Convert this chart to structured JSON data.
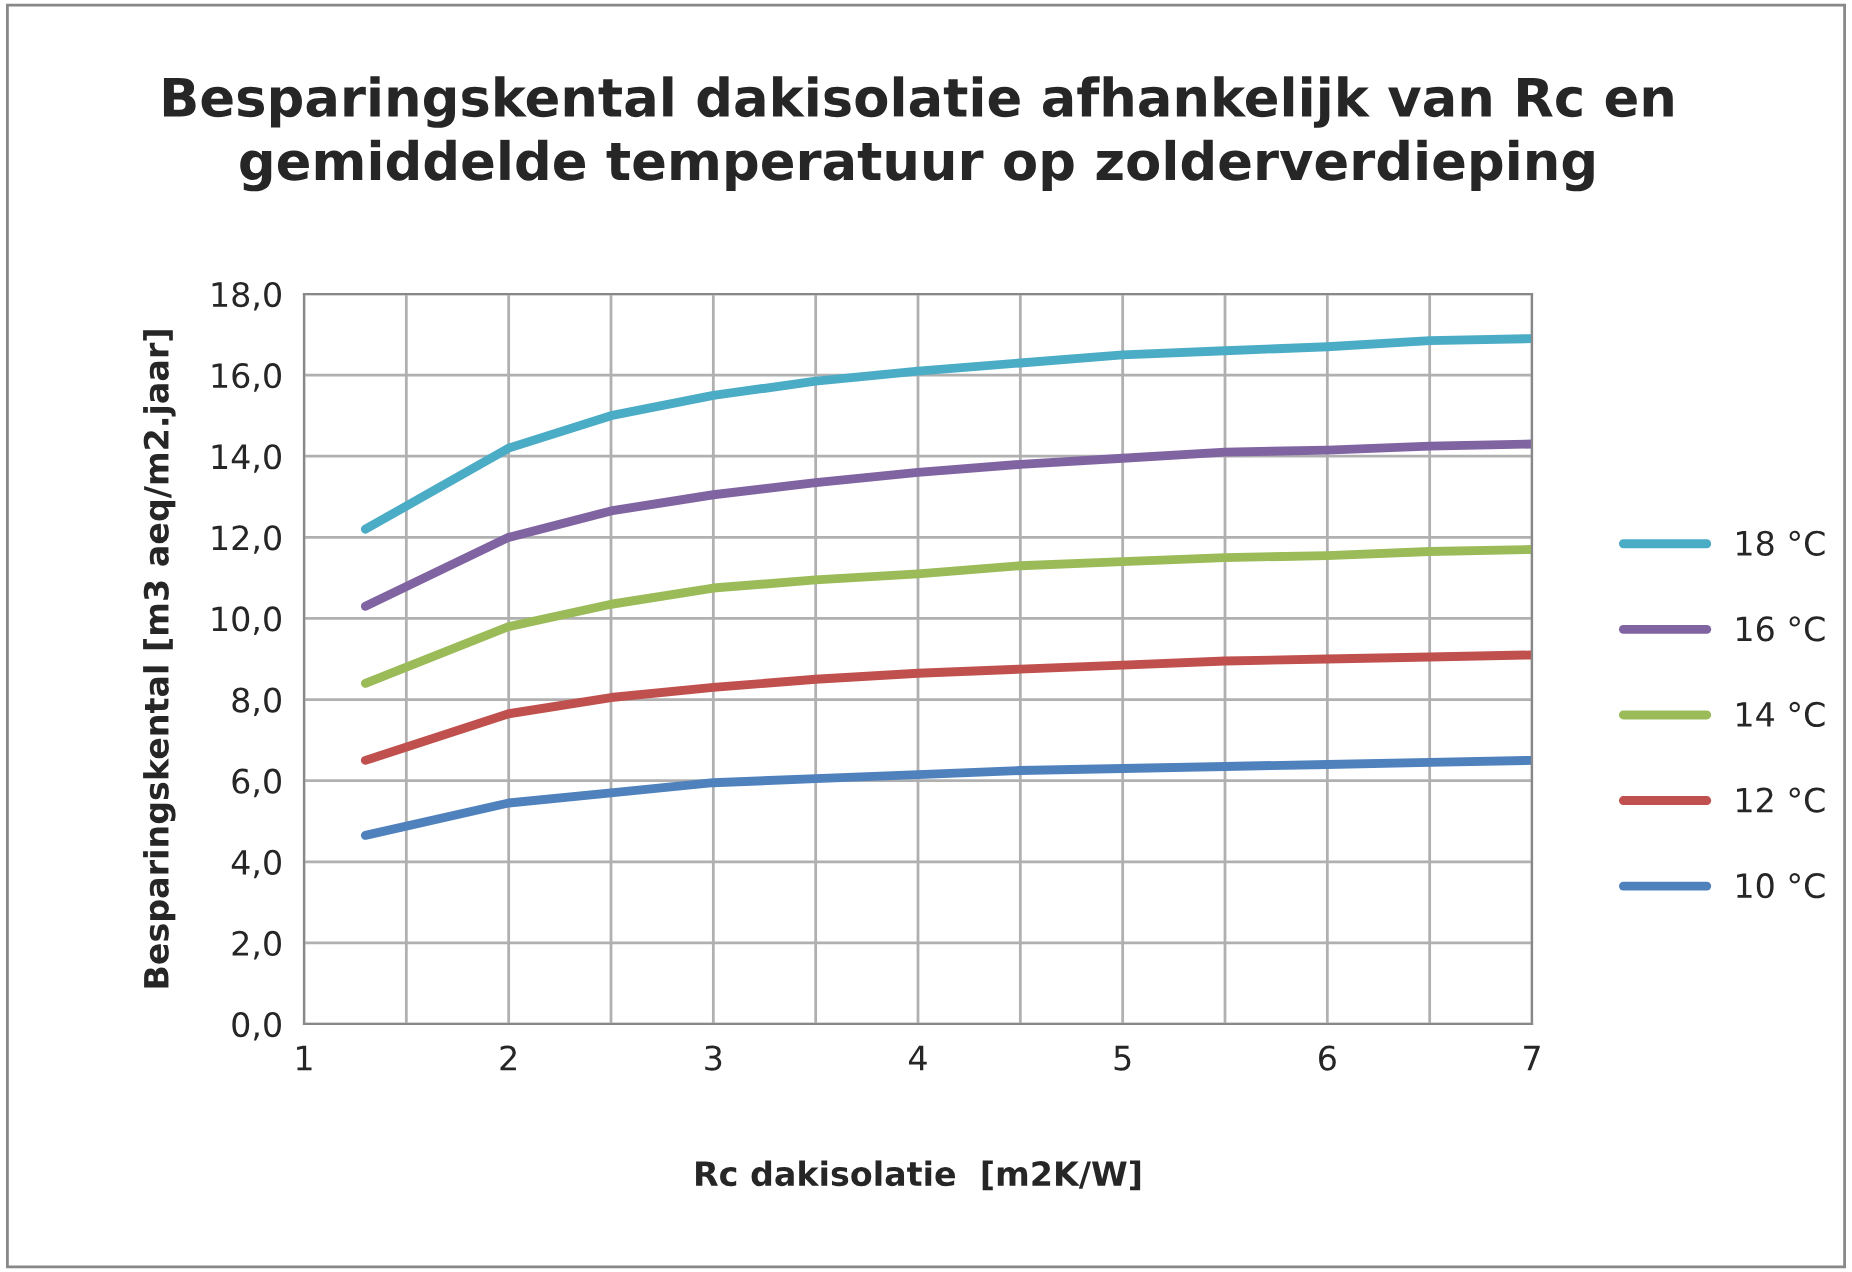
{
  "chart_data": {
    "type": "line",
    "title": "Besparingskental dakisolatie afhankelijk van Rc en\ngemiddelde temperatuur op zolderverdieping",
    "xlabel": "Rc dakisolatie  [m2K/W]",
    "ylabel": "Besparingskental [m3 aeq/m2.jaar]",
    "x": [
      1.3,
      2,
      2.5,
      3,
      3.5,
      4,
      4.5,
      5,
      5.5,
      6,
      6.5,
      7
    ],
    "series": [
      {
        "name": "18 °C",
        "color": "#4bacc6",
        "values": [
          12.2,
          14.2,
          15.0,
          15.5,
          15.85,
          16.1,
          16.3,
          16.5,
          16.6,
          16.7,
          16.85,
          16.9
        ]
      },
      {
        "name": "16 °C",
        "color": "#8064a2",
        "values": [
          10.3,
          12.0,
          12.65,
          13.05,
          13.35,
          13.6,
          13.8,
          13.95,
          14.1,
          14.15,
          14.25,
          14.3
        ]
      },
      {
        "name": "14 °C",
        "color": "#9bbb59",
        "values": [
          8.4,
          9.8,
          10.35,
          10.75,
          10.95,
          11.1,
          11.3,
          11.4,
          11.5,
          11.55,
          11.65,
          11.7
        ]
      },
      {
        "name": "12 °C",
        "color": "#c0504d",
        "values": [
          6.5,
          7.65,
          8.05,
          8.3,
          8.5,
          8.65,
          8.75,
          8.85,
          8.95,
          9.0,
          9.05,
          9.1
        ]
      },
      {
        "name": "10 °C",
        "color": "#4f81bd",
        "values": [
          4.65,
          5.45,
          5.7,
          5.95,
          6.05,
          6.15,
          6.25,
          6.3,
          6.35,
          6.4,
          6.45,
          6.5
        ]
      }
    ],
    "xlim": [
      1,
      7
    ],
    "xticks": [
      1,
      {
        "value": 1.5,
        "label": null
      },
      2,
      {
        "value": 2.5,
        "label": null
      },
      3,
      {
        "value": 3.5,
        "label": null
      },
      4,
      {
        "value": 4.5,
        "label": null
      },
      5,
      {
        "value": 5.5,
        "label": null
      },
      6,
      {
        "value": 6.5,
        "label": null
      },
      7
    ],
    "ylim": [
      0,
      18
    ],
    "yticks": [
      {
        "value": 0,
        "label": "0,0"
      },
      {
        "value": 2,
        "label": "2,0"
      },
      {
        "value": 4,
        "label": "4,0"
      },
      {
        "value": 6,
        "label": "6,0"
      },
      {
        "value": 8,
        "label": "8,0"
      },
      {
        "value": 10,
        "label": "10,0"
      },
      {
        "value": 12,
        "label": "12,0"
      },
      {
        "value": 14,
        "label": "14,0"
      },
      {
        "value": 16,
        "label": "16,0"
      },
      {
        "value": 18,
        "label": "18,0"
      }
    ],
    "grid": true,
    "legend": "right",
    "marker": "none",
    "line_style": "solid"
  }
}
